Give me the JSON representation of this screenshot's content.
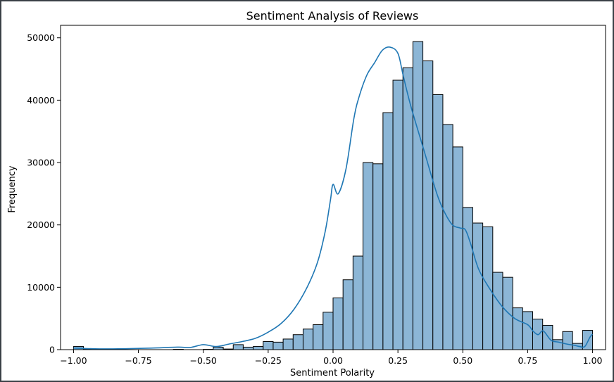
{
  "chart_data": {
    "type": "bar",
    "title": "Sentiment Analysis of Reviews",
    "xlabel": "Sentiment Polarity",
    "ylabel": "Frequency",
    "xlim": [
      -1.05,
      1.05
    ],
    "ylim": [
      0,
      52000
    ],
    "x_ticks": [
      -1.0,
      -0.75,
      -0.5,
      -0.25,
      0.0,
      0.25,
      0.5,
      0.75,
      1.0
    ],
    "x_tick_labels": [
      "−1.00",
      "−0.75",
      "−0.50",
      "−0.25",
      "0.00",
      "0.25",
      "0.50",
      "0.75",
      "1.00"
    ],
    "y_ticks": [
      0,
      10000,
      20000,
      30000,
      40000,
      50000
    ],
    "y_tick_labels": [
      "0",
      "10000",
      "20000",
      "30000",
      "40000",
      "50000"
    ],
    "bins": 50,
    "bin_range": [
      -1.0,
      1.0
    ],
    "values": [
      500,
      50,
      0,
      0,
      0,
      0,
      0,
      0,
      0,
      0,
      50,
      0,
      0,
      50,
      400,
      100,
      800,
      400,
      500,
      1300,
      1200,
      1700,
      2400,
      3300,
      4000,
      6000,
      8300,
      11200,
      15000,
      30000,
      29800,
      38000,
      43200,
      45200,
      49400,
      46300,
      40900,
      36100,
      32500,
      22800,
      20300,
      19700,
      12400,
      11600,
      6700,
      6100,
      4900,
      3900,
      1600,
      2900
    ],
    "tail_values": [
      1000,
      3100
    ],
    "kde": {
      "x": [
        -1.0,
        -0.9,
        -0.8,
        -0.7,
        -0.6,
        -0.55,
        -0.5,
        -0.45,
        -0.4,
        -0.35,
        -0.3,
        -0.25,
        -0.2,
        -0.15,
        -0.1,
        -0.06,
        -0.03,
        -0.01,
        0.0,
        0.02,
        0.05,
        0.08,
        0.1,
        0.13,
        0.16,
        0.19,
        0.22,
        0.25,
        0.27,
        0.3,
        0.35,
        0.4,
        0.43,
        0.46,
        0.49,
        0.51,
        0.53,
        0.56,
        0.6,
        0.65,
        0.7,
        0.75,
        0.77,
        0.79,
        0.81,
        0.84,
        0.87,
        0.9,
        0.93,
        0.95,
        0.97,
        0.99,
        1.0
      ],
      "y": [
        250,
        120,
        150,
        250,
        400,
        350,
        800,
        500,
        900,
        1300,
        1800,
        2800,
        4200,
        6500,
        10000,
        14000,
        19000,
        24000,
        26500,
        25000,
        29000,
        37000,
        40500,
        44000,
        46000,
        48000,
        48500,
        47500,
        44000,
        39000,
        32000,
        25000,
        22000,
        20000,
        19500,
        19200,
        17000,
        13000,
        10000,
        7000,
        5000,
        4000,
        3000,
        2400,
        3000,
        1500,
        1200,
        900,
        700,
        500,
        500,
        2000,
        2500
      ]
    },
    "colors": {
      "bar_fill": "#8cb6d6",
      "bar_edge": "#000000",
      "kde_line": "#1f77b4"
    },
    "grid": false,
    "legend": "none"
  }
}
